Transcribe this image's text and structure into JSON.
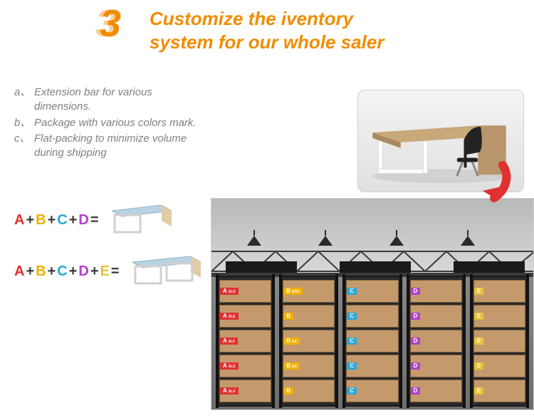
{
  "header": {
    "step_number": "3",
    "title_line1": "Customize the iventory",
    "title_line2": "system for our whole saler",
    "title_color": "#f08c00"
  },
  "bullets": [
    {
      "label": "a、",
      "text": "Extension bar for various dimensions."
    },
    {
      "label": "b、",
      "text": "Package with various colors mark."
    },
    {
      "label": "c、",
      "text": "Flat-packing to minimize volume during shipping"
    }
  ],
  "letter_colors": {
    "A": "#e03030",
    "B": "#f0b000",
    "C": "#2aa8d8",
    "D": "#b040d0",
    "E": "#e8c038"
  },
  "formulas": [
    {
      "letters": [
        "A",
        "B",
        "C",
        "D"
      ],
      "desk_variant": "short"
    },
    {
      "letters": [
        "A",
        "B",
        "C",
        "D",
        "E"
      ],
      "desk_variant": "long"
    }
  ],
  "desk_mini": {
    "top_fill": "#b9d3e2",
    "top_stroke": "#8fb3c7",
    "side_fill": "#e2cca6",
    "leg_stroke": "#d0d0d0"
  },
  "photo": {
    "desk_top_color": "#b9936c",
    "desk_leg_color": "#ffffff",
    "chair_color": "#222222",
    "bg_top": "#f4f4f4",
    "bg_bottom": "#e2e2e2"
  },
  "arrow_color": "#e03030",
  "warehouse": {
    "ceiling_top": "#b8b8b8",
    "ceiling_bottom": "#d8d8d8",
    "truss_color": "#3a3a3a",
    "lamp_color": "#2a2a2a",
    "box_fill": "#c49a6c",
    "box_stroke": "#7a5c3a",
    "racks": [
      {
        "letter": "A",
        "subs": [
          "SLD",
          "SLE",
          "SLF",
          "SLS",
          "SLX"
        ]
      },
      {
        "letter": "B",
        "subs": [
          "WSS",
          "",
          "EA",
          "EB",
          ""
        ]
      },
      {
        "letter": "C",
        "subs": [
          "",
          "",
          "",
          "",
          ""
        ]
      },
      {
        "letter": "D",
        "subs": [
          "",
          "",
          "",
          "",
          ""
        ]
      },
      {
        "letter": "E",
        "subs": [
          "",
          "",
          "",
          "",
          ""
        ]
      }
    ]
  }
}
